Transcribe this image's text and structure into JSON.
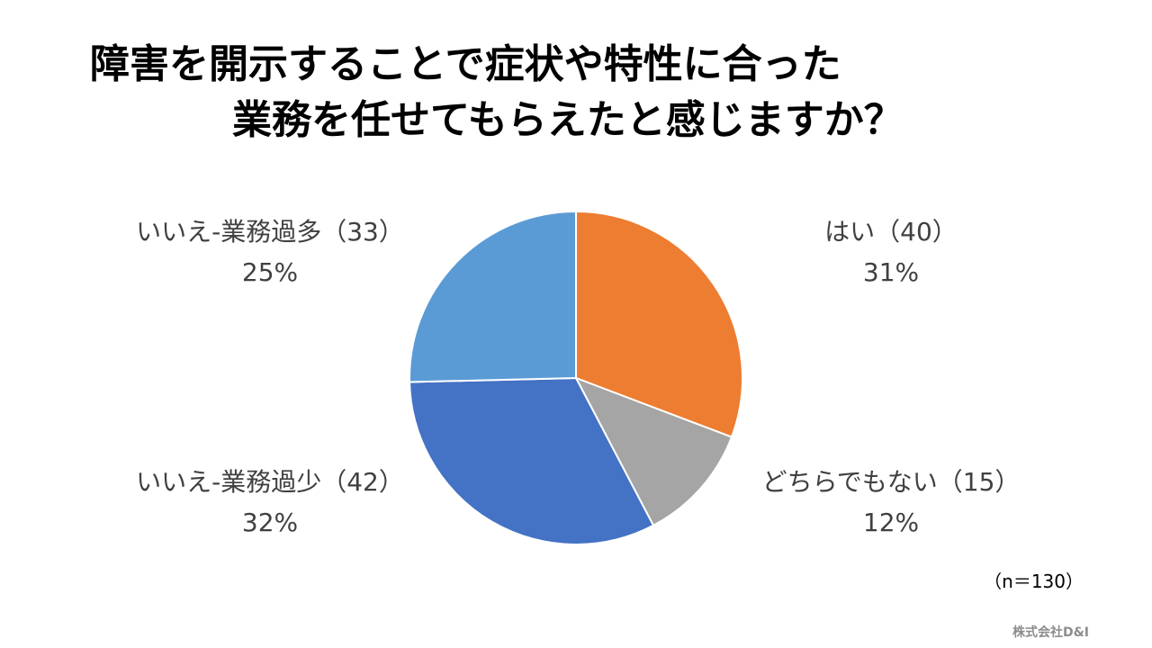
{
  "title": {
    "line1": "障害を開示することで症状や特性に合った",
    "line2": "業務を任せてもらえたと感じますか？"
  },
  "chart_data": {
    "type": "pie",
    "title": "障害を開示することで症状や特性に合った業務を任せてもらえたと感じますか？",
    "slices": [
      {
        "label": "はい（40）",
        "value": 40,
        "percent": "31%",
        "color": "#ED7D31"
      },
      {
        "label": "どちらでもない（15）",
        "value": 15,
        "percent": "12%",
        "color": "#A5A5A5"
      },
      {
        "label": "いいえ-業務過少（42）",
        "value": 42,
        "percent": "32%",
        "color": "#4472C4"
      },
      {
        "label": "いいえ-業務過多（33）",
        "value": 33,
        "percent": "25%",
        "color": "#5B9BD5"
      }
    ]
  },
  "note": {
    "sample_size": "（n＝130）",
    "company": "株式会社D&I"
  }
}
